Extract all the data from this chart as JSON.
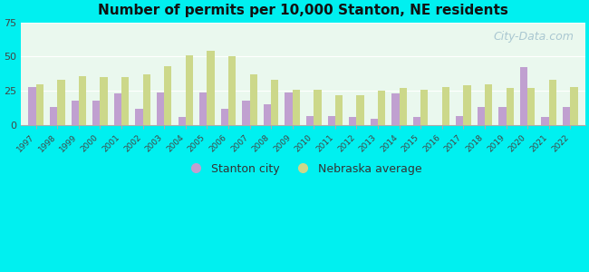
{
  "title": "Number of permits per 10,000 Stanton, NE residents",
  "years": [
    1997,
    1998,
    1999,
    2000,
    2001,
    2002,
    2003,
    2004,
    2005,
    2006,
    2007,
    2008,
    2009,
    2010,
    2011,
    2012,
    2013,
    2014,
    2015,
    2016,
    2017,
    2018,
    2019,
    2020,
    2021,
    2022
  ],
  "stanton": [
    28,
    13,
    18,
    18,
    23,
    12,
    24,
    6,
    24,
    12,
    18,
    15,
    24,
    7,
    7,
    6,
    5,
    23,
    6,
    0,
    7,
    13,
    13,
    42,
    6,
    13
  ],
  "nebraska": [
    30,
    33,
    36,
    35,
    35,
    37,
    43,
    51,
    54,
    50,
    37,
    33,
    26,
    26,
    22,
    22,
    25,
    27,
    26,
    28,
    29,
    30,
    27,
    27,
    33,
    28
  ],
  "stanton_color": "#c0a0d0",
  "nebraska_color": "#ccd88a",
  "fig_bg": "#00f0f0",
  "plot_bg": "#eaf8ee",
  "ylim": [
    0,
    75
  ],
  "yticks": [
    0,
    25,
    50,
    75
  ],
  "bar_width": 0.35,
  "legend_labels": [
    "Stanton city",
    "Nebraska average"
  ],
  "watermark": "City-Data.com"
}
